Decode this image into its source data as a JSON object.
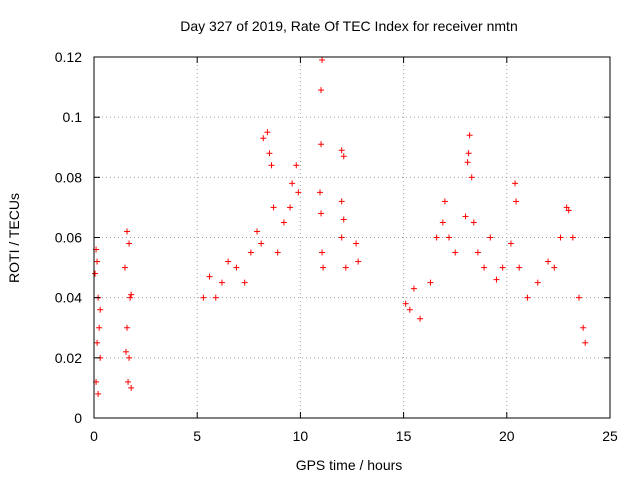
{
  "chart_data": {
    "type": "scatter",
    "title": "Day 327 of 2019, Rate Of TEC Index for receiver nmtn",
    "xlabel": "GPS time / hours",
    "ylabel": "ROTI / TECUs",
    "xlim": [
      0,
      25
    ],
    "ylim": [
      0,
      0.12
    ],
    "xticks": [
      0,
      5,
      10,
      15,
      20,
      25
    ],
    "xtick_labels": [
      "0",
      "5",
      "10",
      "15",
      "20",
      "25"
    ],
    "yticks": [
      0,
      0.02,
      0.04,
      0.06,
      0.08,
      0.1,
      0.12
    ],
    "ytick_labels": [
      "0",
      "0.02",
      "0.04",
      "0.06",
      "0.08",
      "0.1",
      "0.12"
    ],
    "grid": true,
    "marker": "+",
    "color": "#ff0000",
    "series": [
      {
        "points": [
          [
            0.05,
            0.048
          ],
          [
            0.1,
            0.056
          ],
          [
            0.15,
            0.052
          ],
          [
            0.2,
            0.04
          ],
          [
            0.25,
            0.03
          ],
          [
            0.3,
            0.036
          ],
          [
            0.1,
            0.012
          ],
          [
            0.2,
            0.008
          ],
          [
            0.3,
            0.02
          ],
          [
            0.15,
            0.025
          ],
          [
            1.5,
            0.05
          ],
          [
            1.6,
            0.062
          ],
          [
            1.7,
            0.058
          ],
          [
            1.75,
            0.04
          ],
          [
            1.8,
            0.041
          ],
          [
            1.6,
            0.03
          ],
          [
            1.7,
            0.02
          ],
          [
            1.65,
            0.012
          ],
          [
            1.8,
            0.01
          ],
          [
            1.55,
            0.022
          ],
          [
            5.3,
            0.04
          ],
          [
            5.6,
            0.047
          ],
          [
            5.9,
            0.04
          ],
          [
            6.2,
            0.045
          ],
          [
            6.5,
            0.052
          ],
          [
            6.9,
            0.05
          ],
          [
            7.3,
            0.045
          ],
          [
            7.6,
            0.055
          ],
          [
            7.9,
            0.062
          ],
          [
            8.1,
            0.058
          ],
          [
            8.2,
            0.093
          ],
          [
            8.4,
            0.095
          ],
          [
            8.5,
            0.088
          ],
          [
            8.6,
            0.084
          ],
          [
            8.7,
            0.07
          ],
          [
            8.9,
            0.055
          ],
          [
            9.2,
            0.065
          ],
          [
            9.5,
            0.07
          ],
          [
            9.6,
            0.078
          ],
          [
            9.8,
            0.084
          ],
          [
            9.9,
            0.075
          ],
          [
            11.05,
            0.119
          ],
          [
            11.0,
            0.109
          ],
          [
            11.0,
            0.091
          ],
          [
            10.95,
            0.075
          ],
          [
            11.0,
            0.068
          ],
          [
            11.05,
            0.055
          ],
          [
            11.1,
            0.05
          ],
          [
            12.0,
            0.089
          ],
          [
            12.1,
            0.087
          ],
          [
            12.0,
            0.072
          ],
          [
            12.1,
            0.066
          ],
          [
            12.0,
            0.06
          ],
          [
            12.2,
            0.05
          ],
          [
            12.7,
            0.058
          ],
          [
            12.8,
            0.052
          ],
          [
            15.1,
            0.038
          ],
          [
            15.3,
            0.036
          ],
          [
            15.5,
            0.043
          ],
          [
            15.8,
            0.033
          ],
          [
            16.3,
            0.045
          ],
          [
            16.6,
            0.06
          ],
          [
            16.9,
            0.065
          ],
          [
            17.0,
            0.072
          ],
          [
            17.2,
            0.06
          ],
          [
            17.5,
            0.055
          ],
          [
            18.0,
            0.067
          ],
          [
            18.1,
            0.085
          ],
          [
            18.15,
            0.088
          ],
          [
            18.2,
            0.094
          ],
          [
            18.3,
            0.08
          ],
          [
            18.4,
            0.065
          ],
          [
            18.6,
            0.055
          ],
          [
            18.9,
            0.05
          ],
          [
            19.2,
            0.06
          ],
          [
            19.5,
            0.046
          ],
          [
            19.8,
            0.05
          ],
          [
            20.2,
            0.058
          ],
          [
            20.4,
            0.078
          ],
          [
            20.45,
            0.072
          ],
          [
            20.6,
            0.05
          ],
          [
            21.0,
            0.04
          ],
          [
            21.5,
            0.045
          ],
          [
            22.0,
            0.052
          ],
          [
            22.3,
            0.05
          ],
          [
            22.6,
            0.06
          ],
          [
            22.9,
            0.07
          ],
          [
            23.0,
            0.069
          ],
          [
            23.2,
            0.06
          ],
          [
            23.5,
            0.04
          ],
          [
            23.7,
            0.03
          ],
          [
            23.8,
            0.025
          ]
        ]
      }
    ]
  }
}
